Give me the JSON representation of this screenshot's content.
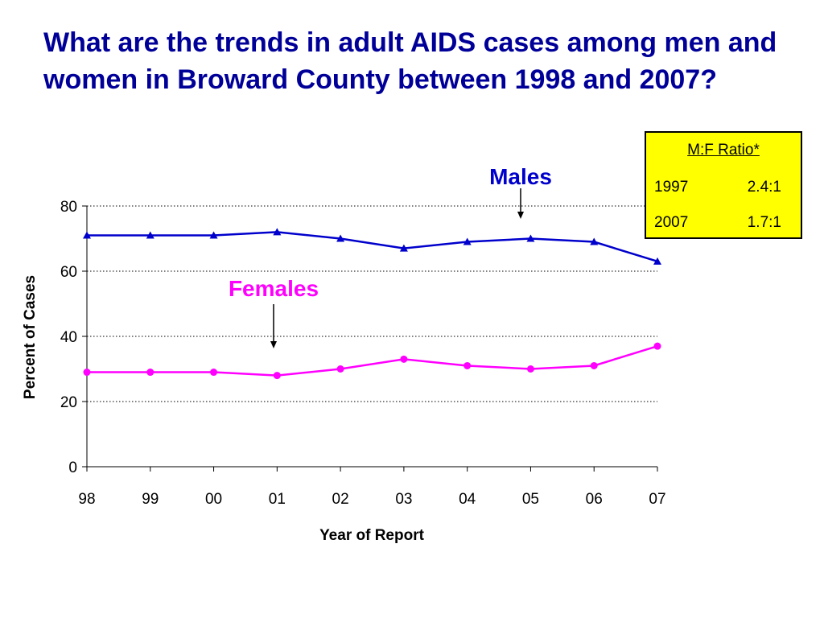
{
  "slide": {
    "title": "What are the trends in adult AIDS cases among men and women in Broward County between 1998 and 2007?"
  },
  "ratio_box": {
    "title": "M:F Ratio*",
    "rows": [
      {
        "year": "1997",
        "ratio": "2.4:1"
      },
      {
        "year": "2007",
        "ratio": "1.7:1"
      }
    ]
  },
  "colors": {
    "title": "#000099",
    "males": "#0000cc",
    "females": "#ff00ff",
    "box": "#ffff00"
  },
  "chart_data": {
    "type": "line",
    "title": "",
    "xlabel": "Year of Report",
    "ylabel": "Percent of Cases",
    "categories": [
      "98",
      "99",
      "00",
      "01",
      "02",
      "03",
      "04",
      "05",
      "06",
      "07"
    ],
    "ylim": [
      0,
      80
    ],
    "yticks": [
      0,
      20,
      40,
      60,
      80
    ],
    "grid": "horizontal dotted",
    "series": [
      {
        "name": "Males",
        "marker": "triangle",
        "color": "#0000cc",
        "values": [
          71,
          71,
          71,
          72,
          70,
          67,
          69,
          70,
          69,
          63
        ]
      },
      {
        "name": "Females",
        "marker": "circle",
        "color": "#ff00ff",
        "values": [
          29,
          29,
          29,
          28,
          30,
          33,
          31,
          30,
          31,
          37
        ]
      }
    ]
  }
}
